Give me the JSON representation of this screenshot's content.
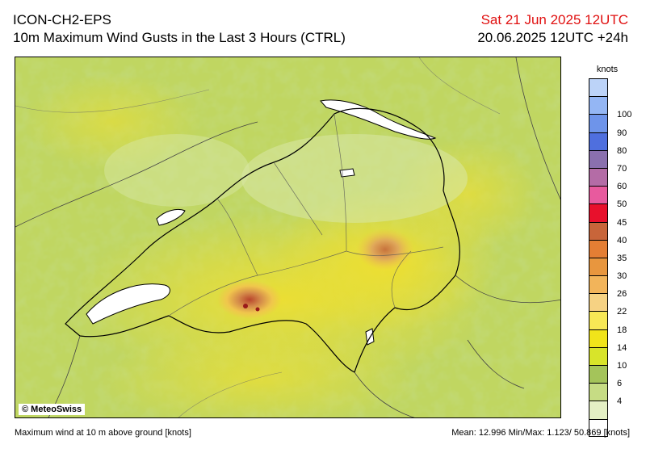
{
  "header": {
    "model": "ICON-CH2-EPS",
    "title": "10m Maximum Wind Gusts in the Last 3 Hours (CTRL)",
    "valid_date": "Sat 21 Jun 2025 12UTC",
    "run_info": "20.06.2025 12UTC +24h"
  },
  "map": {
    "copyright": "© MeteoSwiss"
  },
  "legend": {
    "unit": "knots",
    "colors": [
      "#bcd3f8",
      "#94b6f4",
      "#6e94ea",
      "#4f6fde",
      "#8a70ae",
      "#b46ca6",
      "#e85a9e",
      "#e8102c",
      "#c8653a",
      "#e47e34",
      "#e8963e",
      "#f2b45a",
      "#f6d283",
      "#f7e855",
      "#f1e41a",
      "#d8e42a",
      "#a4c45a",
      "#c6dc84",
      "#e4f0c4",
      "#ffffff"
    ],
    "ticks": [
      "100",
      "90",
      "80",
      "70",
      "60",
      "50",
      "45",
      "40",
      "35",
      "30",
      "26",
      "22",
      "18",
      "14",
      "10",
      "6",
      "4"
    ]
  },
  "footer": {
    "left": "Maximum wind at 10 m above ground [knots]",
    "right": "Mean:  12.996 Min/Max:   1.123/ 50.869 [knots]"
  }
}
